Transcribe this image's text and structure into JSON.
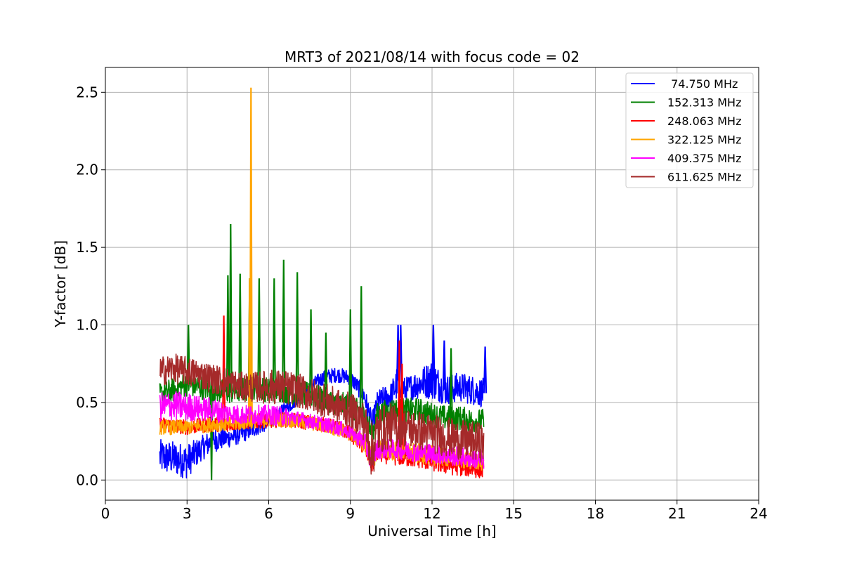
{
  "chart_data": {
    "type": "line",
    "title": "MRT3 of 2021/08/14 with focus code = 02",
    "xlabel": "Universal Time [h]",
    "ylabel": "Y-factor [dB]",
    "xlim": [
      0,
      24
    ],
    "ylim": [
      -0.13,
      2.66
    ],
    "xticks": [
      0,
      3,
      6,
      9,
      12,
      15,
      18,
      21,
      24
    ],
    "xtick_labels": [
      "0",
      "3",
      "6",
      "9",
      "12",
      "15",
      "18",
      "21",
      "24"
    ],
    "yticks": [
      0.0,
      0.5,
      1.0,
      1.5,
      2.0,
      2.5
    ],
    "ytick_labels": [
      "0.0",
      "0.5",
      "1.0",
      "1.5",
      "2.0",
      "2.5"
    ],
    "grid": true,
    "legend_position": "top-right",
    "series": [
      {
        "name": " 74.750 MHz",
        "color": "#0000ff",
        "x": [
          2.0,
          2.5,
          3.0,
          3.5,
          4.0,
          4.5,
          5.0,
          5.5,
          6.0,
          6.5,
          7.0,
          7.5,
          8.0,
          8.5,
          9.0,
          9.5,
          9.8,
          10.0,
          10.5,
          10.8,
          11.0,
          11.5,
          12.0,
          12.5,
          13.0,
          13.5,
          13.9
        ],
        "y": [
          0.15,
          0.14,
          0.12,
          0.2,
          0.26,
          0.27,
          0.3,
          0.33,
          0.37,
          0.44,
          0.52,
          0.6,
          0.66,
          0.68,
          0.66,
          0.55,
          0.35,
          0.5,
          0.55,
          0.65,
          0.58,
          0.62,
          0.65,
          0.58,
          0.6,
          0.58,
          0.56
        ],
        "amp": [
          0.07,
          0.07,
          0.07,
          0.05,
          0.05,
          0.04,
          0.04,
          0.03,
          0.03,
          0.03,
          0.03,
          0.03,
          0.03,
          0.03,
          0.03,
          0.04,
          0.05,
          0.05,
          0.05,
          0.08,
          0.05,
          0.06,
          0.08,
          0.06,
          0.06,
          0.06,
          0.06
        ],
        "spikes": [
          [
            10.75,
            1.0
          ],
          [
            10.85,
            1.0
          ],
          [
            12.05,
            1.0
          ],
          [
            12.45,
            0.9
          ],
          [
            13.95,
            0.86
          ]
        ]
      },
      {
        "name": "152.313 MHz",
        "color": "#008000",
        "x": [
          2.0,
          2.5,
          3.0,
          3.5,
          4.0,
          4.5,
          5.0,
          5.5,
          6.0,
          6.5,
          7.0,
          7.5,
          8.0,
          8.5,
          9.0,
          9.5,
          9.8,
          10.0,
          10.5,
          11.0,
          11.5,
          12.0,
          12.5,
          13.0,
          13.5,
          13.9
        ],
        "y": [
          0.55,
          0.58,
          0.62,
          0.6,
          0.58,
          0.57,
          0.58,
          0.6,
          0.58,
          0.58,
          0.56,
          0.55,
          0.52,
          0.5,
          0.47,
          0.42,
          0.3,
          0.42,
          0.45,
          0.45,
          0.45,
          0.42,
          0.4,
          0.4,
          0.38,
          0.38
        ],
        "amp": [
          0.05,
          0.05,
          0.05,
          0.05,
          0.05,
          0.05,
          0.05,
          0.05,
          0.05,
          0.05,
          0.05,
          0.05,
          0.05,
          0.05,
          0.05,
          0.05,
          0.05,
          0.05,
          0.05,
          0.05,
          0.05,
          0.05,
          0.05,
          0.05,
          0.05,
          0.05
        ],
        "spikes": [
          [
            3.05,
            1.0
          ],
          [
            3.9,
            0.0
          ],
          [
            4.5,
            1.32
          ],
          [
            4.6,
            1.65
          ],
          [
            4.95,
            1.33
          ],
          [
            5.3,
            1.3
          ],
          [
            5.65,
            1.3
          ],
          [
            6.2,
            1.3
          ],
          [
            6.55,
            1.42
          ],
          [
            7.05,
            1.34
          ],
          [
            7.55,
            1.1
          ],
          [
            8.1,
            0.95
          ],
          [
            9.4,
            1.25
          ],
          [
            9.0,
            1.1
          ],
          [
            12.7,
            0.85
          ]
        ]
      },
      {
        "name": "248.063 MHz",
        "color": "#ff0000",
        "x": [
          2.0,
          2.5,
          3.0,
          3.5,
          4.0,
          4.5,
          5.0,
          5.5,
          6.0,
          6.5,
          7.0,
          7.5,
          8.0,
          8.5,
          9.0,
          9.5,
          9.8,
          10.0,
          10.5,
          11.0,
          11.5,
          12.0,
          12.5,
          13.0,
          13.5,
          13.9
        ],
        "y": [
          0.36,
          0.35,
          0.34,
          0.35,
          0.36,
          0.36,
          0.37,
          0.38,
          0.38,
          0.39,
          0.38,
          0.37,
          0.36,
          0.34,
          0.3,
          0.22,
          0.12,
          0.18,
          0.16,
          0.15,
          0.14,
          0.12,
          0.1,
          0.09,
          0.08,
          0.07
        ],
        "amp": [
          0.03,
          0.03,
          0.03,
          0.03,
          0.03,
          0.03,
          0.03,
          0.03,
          0.03,
          0.03,
          0.03,
          0.03,
          0.03,
          0.03,
          0.03,
          0.04,
          0.05,
          0.04,
          0.04,
          0.04,
          0.04,
          0.04,
          0.04,
          0.04,
          0.04,
          0.04
        ],
        "spikes": [
          [
            4.35,
            1.06
          ],
          [
            10.8,
            0.9
          ],
          [
            10.9,
            0.75
          ]
        ]
      },
      {
        "name": "322.125 MHz",
        "color": "#ffa500",
        "x": [
          2.0,
          2.5,
          3.0,
          3.5,
          4.0,
          4.5,
          5.0,
          5.5,
          6.0,
          6.5,
          7.0,
          7.5,
          8.0,
          8.5,
          9.0,
          9.5,
          9.8,
          10.0,
          10.5,
          11.0,
          11.5,
          12.0,
          12.5,
          13.0,
          13.5,
          13.9
        ],
        "y": [
          0.34,
          0.34,
          0.34,
          0.35,
          0.36,
          0.36,
          0.37,
          0.38,
          0.39,
          0.39,
          0.38,
          0.37,
          0.35,
          0.33,
          0.3,
          0.24,
          0.14,
          0.2,
          0.19,
          0.18,
          0.17,
          0.16,
          0.15,
          0.14,
          0.13,
          0.12
        ],
        "amp": [
          0.03,
          0.03,
          0.03,
          0.03,
          0.03,
          0.03,
          0.03,
          0.03,
          0.03,
          0.03,
          0.03,
          0.03,
          0.03,
          0.03,
          0.03,
          0.04,
          0.05,
          0.04,
          0.04,
          0.04,
          0.04,
          0.04,
          0.04,
          0.04,
          0.04,
          0.04
        ],
        "spikes": [
          [
            5.35,
            2.53
          ],
          [
            5.3,
            1.3
          ]
        ]
      },
      {
        "name": "409.375 MHz",
        "color": "#ff00ff",
        "x": [
          2.0,
          2.5,
          3.0,
          3.5,
          4.0,
          4.5,
          5.0,
          5.5,
          6.0,
          6.5,
          7.0,
          7.5,
          8.0,
          8.5,
          9.0,
          9.5,
          9.8,
          10.0,
          10.5,
          11.0,
          11.5,
          12.0,
          12.5,
          13.0,
          13.5,
          13.9
        ],
        "y": [
          0.47,
          0.48,
          0.47,
          0.46,
          0.45,
          0.43,
          0.42,
          0.42,
          0.42,
          0.41,
          0.4,
          0.38,
          0.36,
          0.34,
          0.31,
          0.25,
          0.14,
          0.2,
          0.2,
          0.19,
          0.18,
          0.17,
          0.16,
          0.15,
          0.14,
          0.13
        ],
        "amp": [
          0.06,
          0.06,
          0.06,
          0.05,
          0.05,
          0.04,
          0.04,
          0.04,
          0.04,
          0.04,
          0.03,
          0.03,
          0.03,
          0.03,
          0.03,
          0.04,
          0.05,
          0.04,
          0.04,
          0.04,
          0.04,
          0.04,
          0.04,
          0.04,
          0.04,
          0.04
        ],
        "spikes": []
      },
      {
        "name": "611.625 MHz",
        "color": "#a52a2a",
        "x": [
          2.0,
          2.5,
          3.0,
          3.5,
          4.0,
          4.5,
          5.0,
          5.5,
          6.0,
          6.5,
          7.0,
          7.5,
          8.0,
          8.5,
          9.0,
          9.5,
          9.8,
          10.0,
          10.5,
          11.0,
          11.5,
          12.0,
          12.5,
          13.0,
          13.5,
          13.9
        ],
        "y": [
          0.7,
          0.72,
          0.7,
          0.68,
          0.65,
          0.63,
          0.6,
          0.6,
          0.6,
          0.6,
          0.58,
          0.55,
          0.52,
          0.48,
          0.45,
          0.38,
          0.18,
          0.32,
          0.35,
          0.34,
          0.32,
          0.3,
          0.28,
          0.26,
          0.25,
          0.24
        ],
        "amp": [
          0.06,
          0.06,
          0.06,
          0.06,
          0.06,
          0.06,
          0.06,
          0.06,
          0.07,
          0.07,
          0.07,
          0.07,
          0.07,
          0.07,
          0.07,
          0.08,
          0.12,
          0.1,
          0.09,
          0.08,
          0.08,
          0.08,
          0.08,
          0.08,
          0.08,
          0.08
        ],
        "spikes": []
      }
    ]
  }
}
